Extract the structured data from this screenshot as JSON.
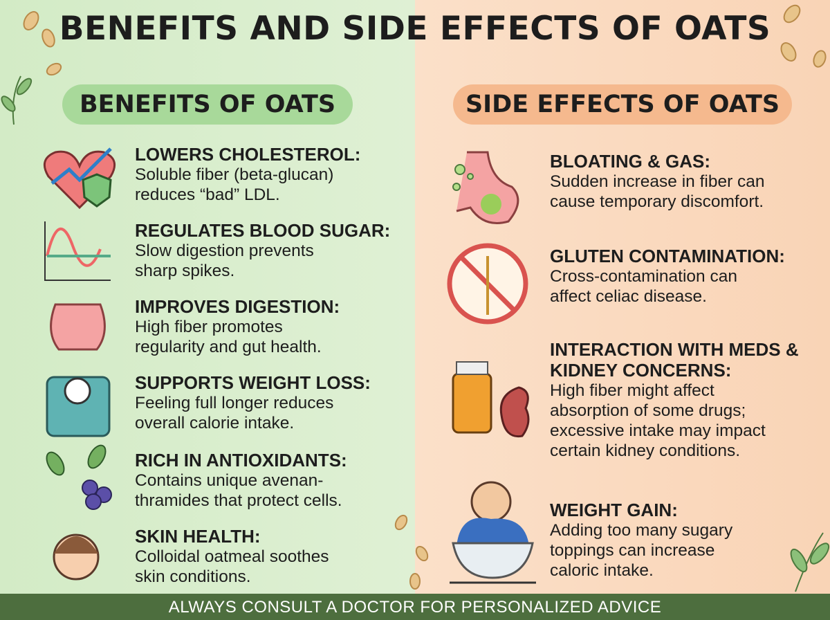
{
  "title": "BENEFITS AND SIDE EFFECTS OF OATS",
  "benefits": {
    "heading": "BENEFITS OF OATS",
    "items": [
      {
        "title": "LOWERS CHOLESTEROL:",
        "lines": [
          "Soluble fiber (beta-glucan)",
          "reduces “bad” LDL."
        ]
      },
      {
        "title": "REGULATES BLOOD SUGAR:",
        "lines": [
          "Slow digestion prevents",
          "sharp spikes."
        ]
      },
      {
        "title": "IMPROVES DIGESTION:",
        "lines": [
          "High fiber promotes",
          "regularity and gut health."
        ]
      },
      {
        "title": "SUPPORTS WEIGHT LOSS:",
        "lines": [
          "Feeling full longer reduces",
          "overall calorie intake."
        ]
      },
      {
        "title": "RICH IN ANTIOXIDANTS:",
        "lines": [
          "Contains unique avenan-",
          "thramides that protect cells."
        ]
      },
      {
        "title": "SKIN HEALTH:",
        "lines": [
          "Colloidal oatmeal soothes",
          "skin conditions."
        ]
      }
    ]
  },
  "side_effects": {
    "heading": "SIDE EFFECTS OF OATS",
    "items": [
      {
        "title": "BLOATING & GAS:",
        "lines": [
          "Sudden increase in fiber can",
          "cause temporary discomfort."
        ]
      },
      {
        "title": "GLUTEN CONTAMINATION:",
        "lines": [
          "Cross-contamination can",
          "affect celiac disease."
        ]
      },
      {
        "title": "INTERACTION WITH MEDS & KIDNEY CONCERNS:",
        "lines": [
          "High fiber might affect",
          "absorption of some drugs;",
          "excessive intake may impact",
          "certain kidney conditions."
        ]
      },
      {
        "title": "WEIGHT GAIN:",
        "lines": [
          "Adding too many sugary",
          "toppings can increase",
          "caloric intake."
        ]
      }
    ]
  },
  "footer": "ALWAYS CONSULT A DOCTOR FOR PERSONALIZED ADVICE"
}
